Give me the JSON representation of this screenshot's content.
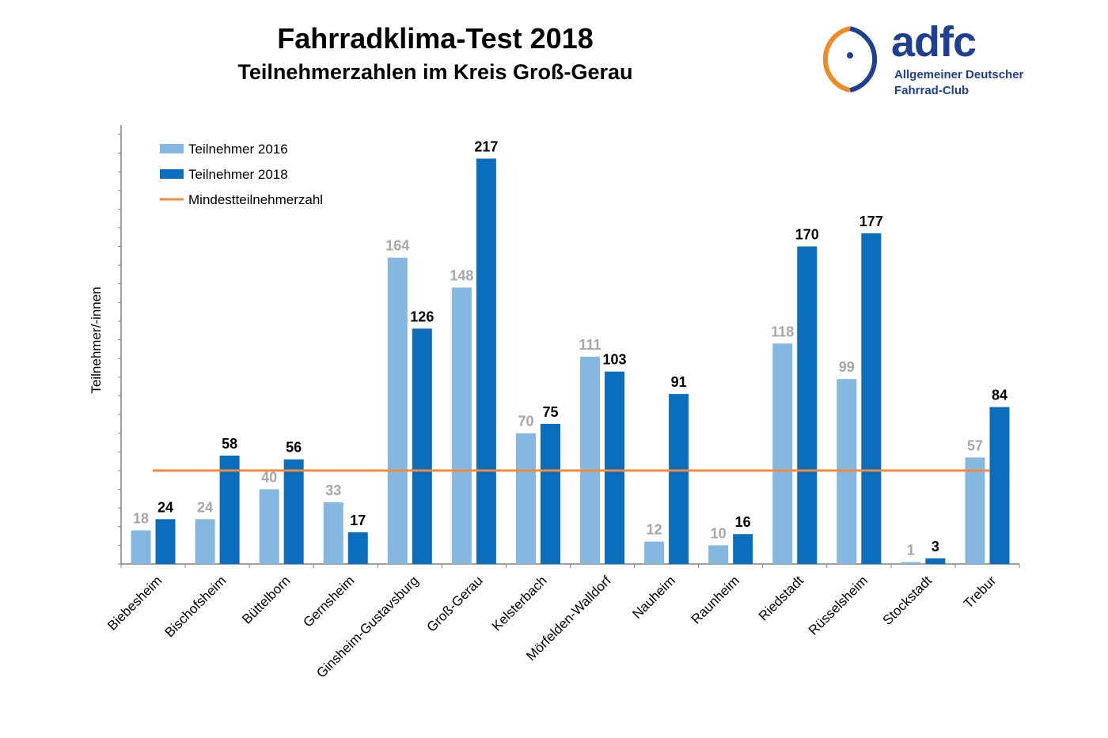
{
  "header": {
    "title": "Fahrradklima-Test 2018",
    "subtitle": "Teilnehmerzahlen im Kreis Groß-Gerau"
  },
  "logo": {
    "word": "adfc",
    "line1": "Allgemeiner Deutscher",
    "line2": "Fahrrad-Club",
    "colors": {
      "blue": "#1e3f92",
      "orange": "#f08a24"
    }
  },
  "chart_data": {
    "type": "bar",
    "title": "Fahrradklima-Test 2018",
    "subtitle": "Teilnehmerzahlen im Kreis Groß-Gerau",
    "ylabel": "Teilnehmer/-innen",
    "xlabel": "",
    "ylim": [
      0,
      235
    ],
    "grid": false,
    "legend_position": "top-left",
    "categories": [
      "Biebesheim",
      "Bischofsheim",
      "Büttelborn",
      "Gernsheim",
      "Ginsheim-Gustavsburg",
      "Groß-Gerau",
      "Kelsterbach",
      "Mörfelden-Walldorf",
      "Nauheim",
      "Raunheim",
      "Riedstadt",
      "Rüsselsheim",
      "Stockstadt",
      "Trebur"
    ],
    "series": [
      {
        "name": "Teilnehmer 2016",
        "color": "#85b8e0",
        "values": [
          18,
          24,
          40,
          33,
          164,
          148,
          70,
          111,
          12,
          10,
          118,
          99,
          1,
          57
        ]
      },
      {
        "name": "Teilnehmer 2018",
        "color": "#0a6ebd",
        "values": [
          24,
          58,
          56,
          17,
          126,
          217,
          75,
          103,
          91,
          16,
          170,
          177,
          3,
          84
        ]
      }
    ],
    "reference_line": {
      "name": "Mindestteilnehmerzahl",
      "value": 50,
      "color": "#f08a3c"
    }
  }
}
